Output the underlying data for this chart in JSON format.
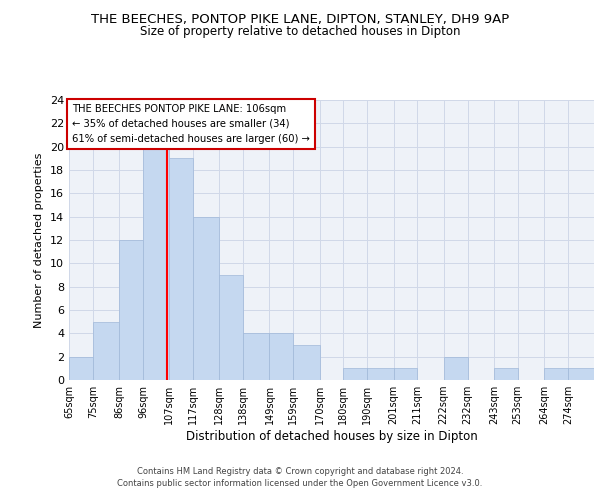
{
  "title": "THE BEECHES, PONTOP PIKE LANE, DIPTON, STANLEY, DH9 9AP",
  "subtitle": "Size of property relative to detached houses in Dipton",
  "xlabel": "Distribution of detached houses by size in Dipton",
  "ylabel": "Number of detached properties",
  "bin_labels": [
    "65sqm",
    "75sqm",
    "86sqm",
    "96sqm",
    "107sqm",
    "117sqm",
    "128sqm",
    "138sqm",
    "149sqm",
    "159sqm",
    "170sqm",
    "180sqm",
    "190sqm",
    "201sqm",
    "211sqm",
    "222sqm",
    "232sqm",
    "243sqm",
    "253sqm",
    "264sqm",
    "274sqm"
  ],
  "bin_left_edges": [
    65,
    75,
    86,
    96,
    107,
    117,
    128,
    138,
    149,
    159,
    170,
    180,
    190,
    201,
    211,
    222,
    232,
    243,
    253,
    264,
    274
  ],
  "bin_widths": [
    10,
    11,
    10,
    11,
    10,
    11,
    10,
    11,
    10,
    11,
    10,
    10,
    11,
    10,
    11,
    10,
    11,
    10,
    11,
    10,
    11
  ],
  "counts": [
    2,
    5,
    12,
    20,
    19,
    14,
    9,
    4,
    4,
    3,
    0,
    1,
    1,
    1,
    0,
    2,
    0,
    1,
    0,
    1,
    1
  ],
  "bar_color": "#c5d8f0",
  "bar_edge_color": "#a0b8d8",
  "red_line_x": 106,
  "annotation_text": "THE BEECHES PONTOP PIKE LANE: 106sqm\n← 35% of detached houses are smaller (34)\n61% of semi-detached houses are larger (60) →",
  "annotation_box_color": "#ffffff",
  "annotation_box_edge_color": "#cc0000",
  "grid_color": "#d0d8e8",
  "background_color": "#eef2f8",
  "ylim": [
    0,
    24
  ],
  "yticks": [
    0,
    2,
    4,
    6,
    8,
    10,
    12,
    14,
    16,
    18,
    20,
    22,
    24
  ],
  "footer_line1": "Contains HM Land Registry data © Crown copyright and database right 2024.",
  "footer_line2": "Contains public sector information licensed under the Open Government Licence v3.0."
}
